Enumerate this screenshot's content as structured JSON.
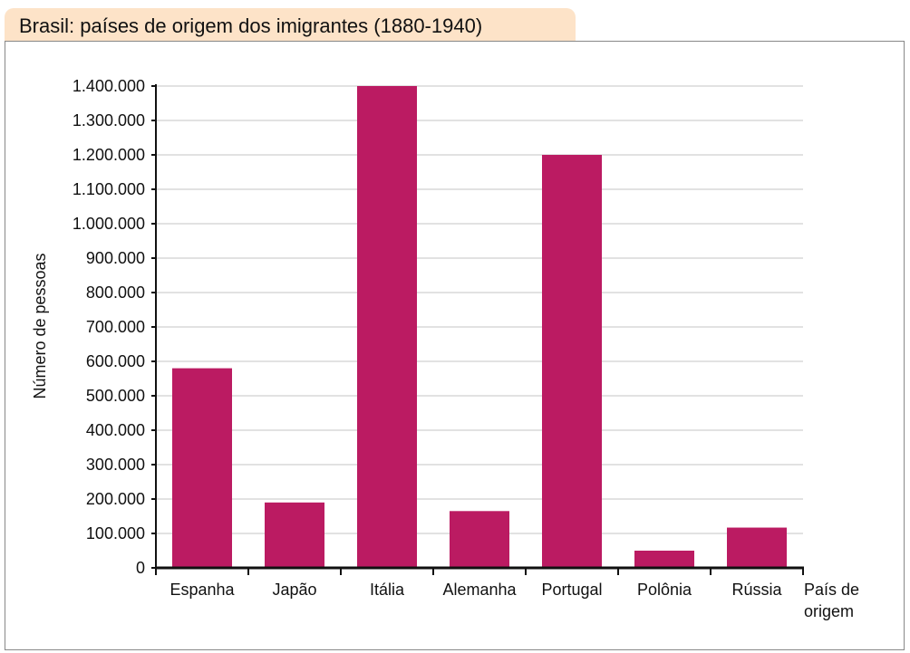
{
  "chart_data": {
    "type": "bar",
    "title": "Brasil: países de origem dos imigrantes (1880-1940)",
    "xlabel": "País de origem",
    "ylabel": "Número de pessoas",
    "categories": [
      "Espanha",
      "Japão",
      "Itália",
      "Alemanha",
      "Portugal",
      "Polônia",
      "Rússia"
    ],
    "values": [
      580000,
      190000,
      1400000,
      165000,
      1200000,
      50000,
      117000
    ],
    "ylim": [
      0,
      1400000
    ],
    "yticks": [
      "0",
      "100.000",
      "200.000",
      "300.000",
      "400.000",
      "500.000",
      "600.000",
      "700.000",
      "800.000",
      "900.000",
      "1.000.000",
      "1.100.000",
      "1.200.000",
      "1.300.000",
      "1.400.000"
    ],
    "grid": true,
    "bar_color": "#bb1b62",
    "title_bg": "#fde3c8"
  }
}
